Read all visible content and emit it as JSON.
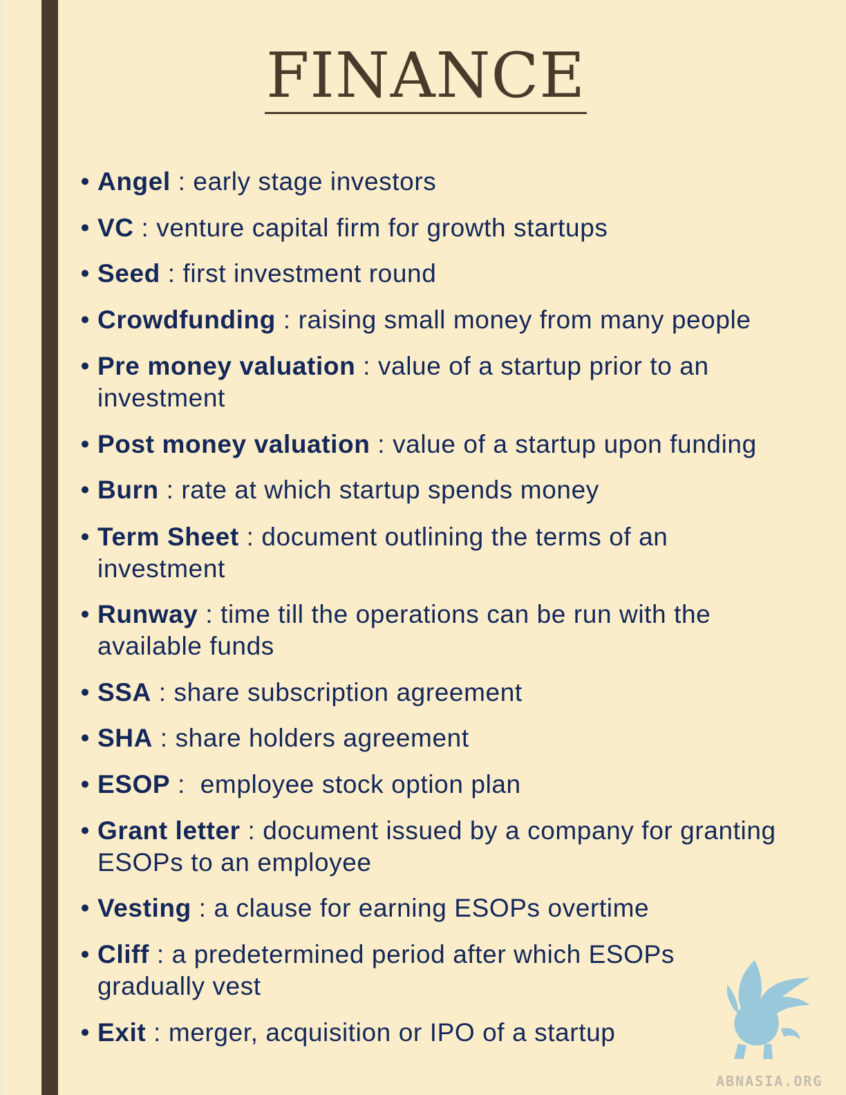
{
  "title": "FINANCE",
  "terms": [
    {
      "term": "Angel",
      "separator": " : ",
      "definition": "early stage investors"
    },
    {
      "term": "VC",
      "separator": " : ",
      "definition": "venture capital firm for growth startups"
    },
    {
      "term": "Seed",
      "separator": " : ",
      "definition": "first investment round"
    },
    {
      "term": "Crowdfunding",
      "separator": " : ",
      "definition": "raising small money from many people"
    },
    {
      "term": "Pre money valuation",
      "separator": " : ",
      "definition": "value of a startup prior to an investment"
    },
    {
      "term": "Post money valuation",
      "separator": " : ",
      "definition": "value of a startup upon funding"
    },
    {
      "term": "Burn",
      "separator": " : ",
      "definition": "rate at which startup spends money"
    },
    {
      "term": "Term Sheet",
      "separator": " : ",
      "definition": "document outlining the terms of an investment"
    },
    {
      "term": "Runway",
      "separator": " : ",
      "definition": "time till the operations can be run with the available funds"
    },
    {
      "term": "SSA",
      "separator": " : ",
      "definition": "share subscription agreement"
    },
    {
      "term": "SHA",
      "separator": " : ",
      "definition": "share holders agreement"
    },
    {
      "term": "ESOP",
      "separator": " :  ",
      "definition": "employee stock option plan"
    },
    {
      "term": "Grant letter",
      "separator": " : ",
      "definition": "document issued by a company for granting ESOPs to an employee"
    },
    {
      "term": "Vesting",
      "separator": " : ",
      "definition": "a clause for earning ESOPs overtime"
    },
    {
      "term": "Cliff",
      "separator": " : ",
      "definition": "a predetermined period after which ESOPs gradually vest"
    },
    {
      "term": "Exit",
      "separator": " : ",
      "definition": "merger, acquisition or IPO of a startup"
    }
  ],
  "bullet_char": "•",
  "logo": {
    "icon": "griffin-logo-icon",
    "text": "ABNASIA.ORG"
  },
  "colors": {
    "background": "#fbedc9",
    "side_bar": "#4a3a2b",
    "title": "#4a3a2b",
    "body_text": "#13275a",
    "logo": "#8fc4dd"
  }
}
